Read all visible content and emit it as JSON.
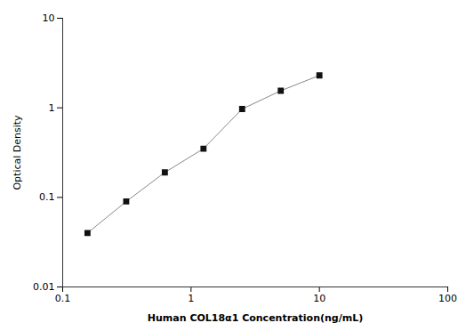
{
  "chart_data": {
    "type": "line",
    "x": [
      0.156,
      0.3125,
      0.625,
      1.25,
      2.5,
      5.0,
      10.0
    ],
    "values": [
      0.04,
      0.09,
      0.19,
      0.35,
      0.97,
      1.55,
      2.3
    ],
    "xlabel": "Human COL18α1 Concentration(ng/mL)",
    "ylabel": "Optical Density",
    "xlim": [
      0.1,
      100
    ],
    "ylim": [
      0.01,
      10
    ],
    "xticks": [
      0.1,
      1,
      10,
      100
    ],
    "yticks": [
      0.01,
      0.1,
      1,
      10
    ],
    "log": true,
    "grid": false,
    "color": "#888888",
    "marker": "square"
  }
}
